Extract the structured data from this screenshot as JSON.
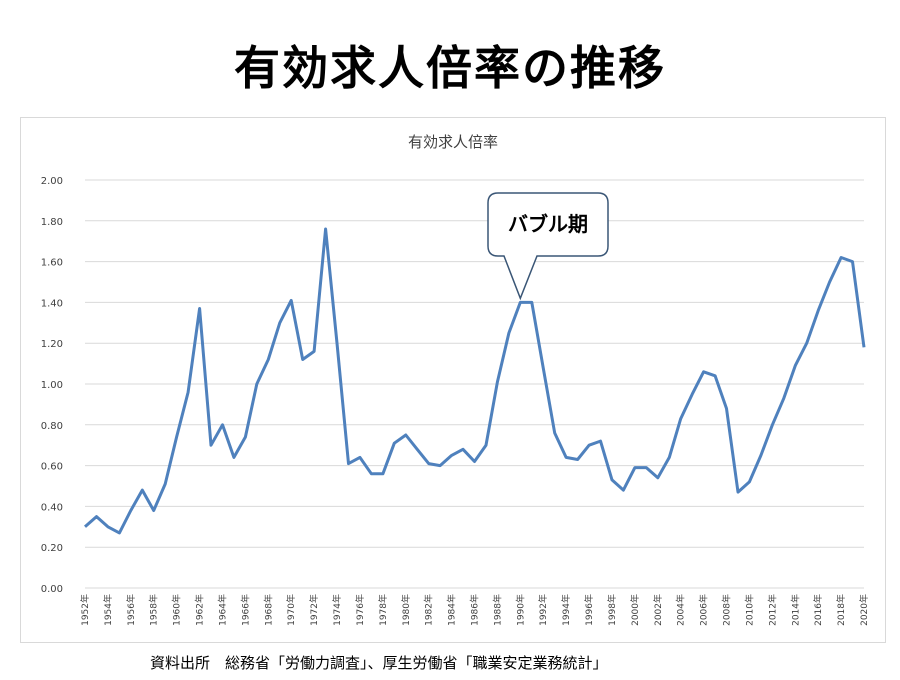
{
  "page": {
    "title": "有効求人倍率の推移",
    "source": "資料出所　総務省「労働力調査」、厚生労働省「職業安定業務統計」"
  },
  "chart_data": {
    "type": "line",
    "title": "有効求人倍率",
    "xlabel": "",
    "ylabel": "",
    "ylim": [
      0,
      2.0
    ],
    "yticks": [
      "0.00",
      "0.20",
      "0.40",
      "0.60",
      "0.80",
      "1.00",
      "1.20",
      "1.40",
      "1.60",
      "1.80",
      "2.00"
    ],
    "x_tick_labels": [
      "1952年",
      "1954年",
      "1956年",
      "1958年",
      "1960年",
      "1962年",
      "1964年",
      "1966年",
      "1968年",
      "1970年",
      "1972年",
      "1974年",
      "1976年",
      "1978年",
      "1980年",
      "1982年",
      "1984年",
      "1986年",
      "1988年",
      "1990年",
      "1992年",
      "1994年",
      "1996年",
      "1998年",
      "2000年",
      "2002年",
      "2004年",
      "2006年",
      "2008年",
      "2010年",
      "2012年",
      "2014年",
      "2016年",
      "2018年",
      "2020年"
    ],
    "grid": true,
    "line_color": "#4f81bd",
    "x": [
      1952,
      1953,
      1954,
      1955,
      1956,
      1957,
      1958,
      1959,
      1960,
      1961,
      1962,
      1963,
      1964,
      1965,
      1966,
      1967,
      1968,
      1969,
      1970,
      1971,
      1972,
      1973,
      1974,
      1975,
      1976,
      1977,
      1978,
      1979,
      1980,
      1981,
      1982,
      1983,
      1984,
      1985,
      1986,
      1987,
      1988,
      1989,
      1990,
      1991,
      1992,
      1993,
      1994,
      1995,
      1996,
      1997,
      1998,
      1999,
      2000,
      2001,
      2002,
      2003,
      2004,
      2005,
      2006,
      2007,
      2008,
      2009,
      2010,
      2011,
      2012,
      2013,
      2014,
      2015,
      2016,
      2017,
      2018,
      2019,
      2020
    ],
    "series": [
      {
        "values": [
          0.3,
          0.35,
          0.3,
          0.27,
          0.38,
          0.48,
          0.38,
          0.51,
          0.74,
          0.96,
          1.37,
          0.7,
          0.8,
          0.64,
          0.74,
          1.0,
          1.12,
          1.3,
          1.41,
          1.12,
          1.16,
          1.76,
          1.2,
          0.61,
          0.64,
          0.56,
          0.56,
          0.71,
          0.75,
          0.68,
          0.61,
          0.6,
          0.65,
          0.68,
          0.62,
          0.7,
          1.01,
          1.25,
          1.4,
          1.4,
          1.08,
          0.76,
          0.64,
          0.63,
          0.7,
          0.72,
          0.53,
          0.48,
          0.59,
          0.59,
          0.54,
          0.64,
          0.83,
          0.95,
          1.06,
          1.04,
          0.88,
          0.47,
          0.52,
          0.65,
          0.8,
          0.93,
          1.09,
          1.2,
          1.36,
          1.5,
          1.62,
          1.6,
          1.18
        ]
      }
    ],
    "annotation": {
      "text": "バブル期",
      "x": 1990,
      "y": 1.42
    }
  }
}
